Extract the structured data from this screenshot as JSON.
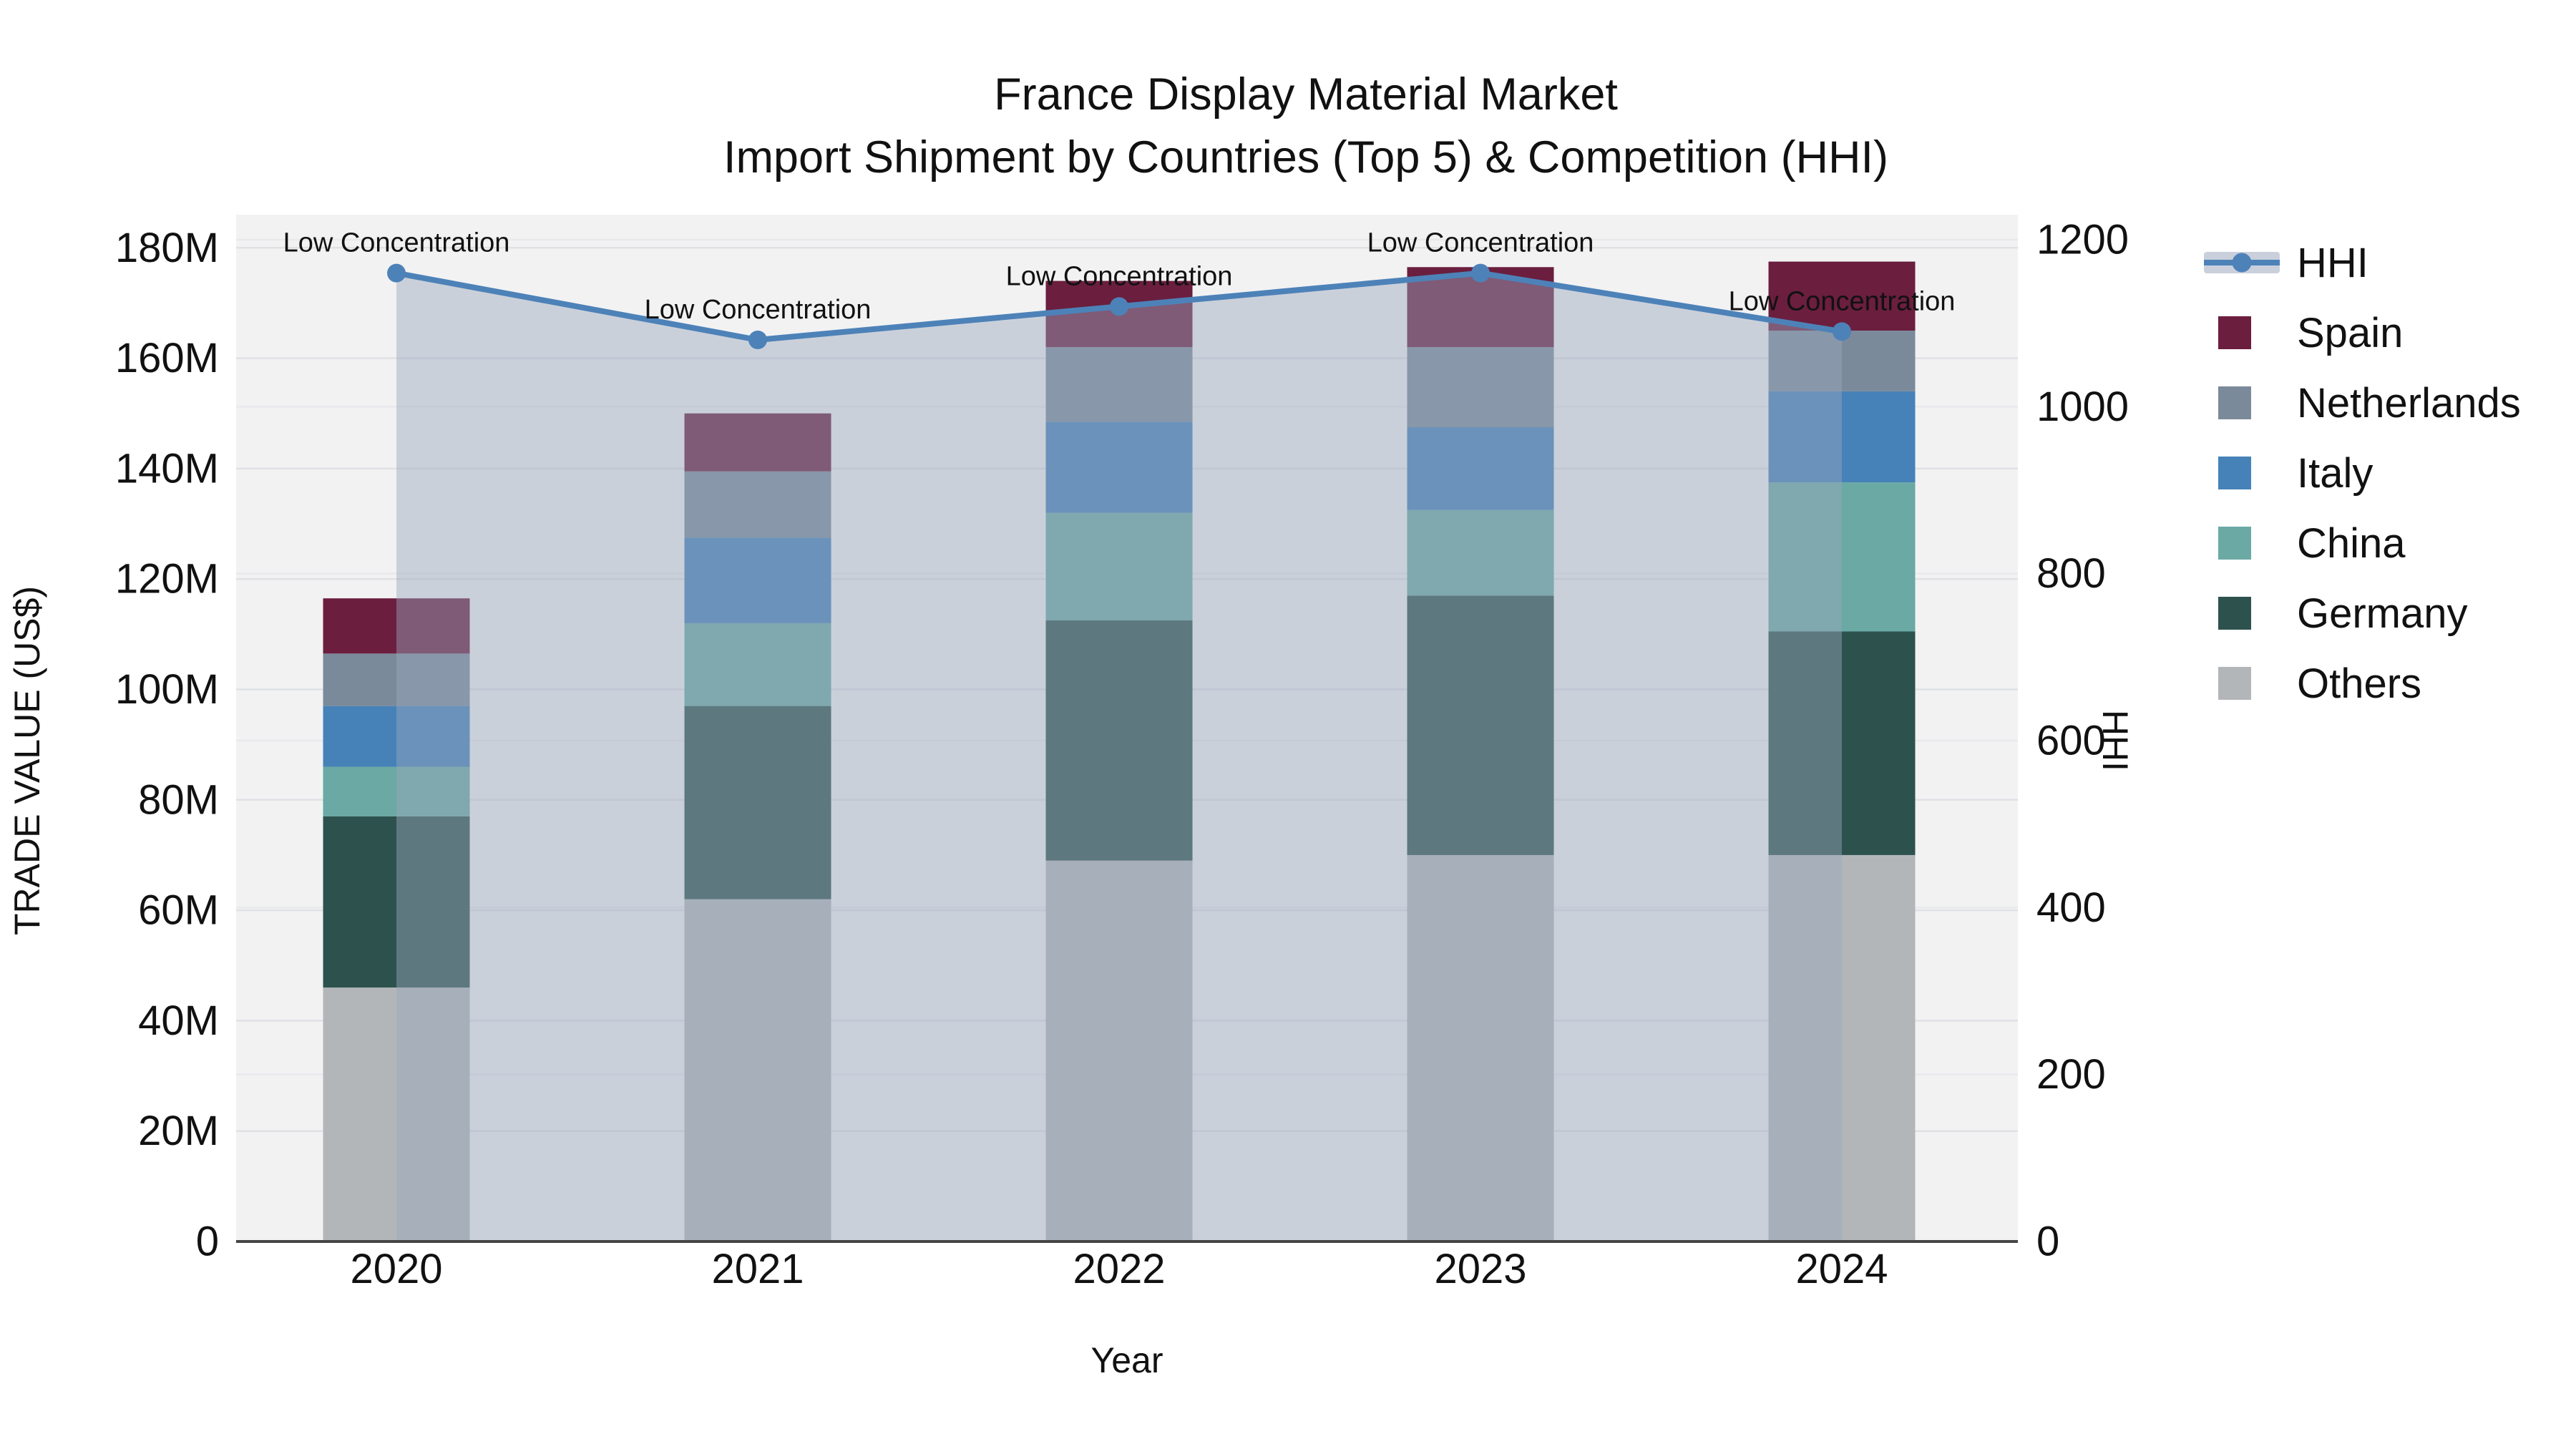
{
  "title": {
    "line1": "France Display Material Market",
    "line2": "Import Shipment by Countries (Top 5) & Competition (HHI)"
  },
  "axes": {
    "x_title": "Year",
    "y_left_title": "TRADE VALUE (US$)",
    "y_right_title": "HHI",
    "x_ticks": [
      "2020",
      "2021",
      "2022",
      "2023",
      "2024"
    ],
    "y_left_ticks": [
      "0",
      "20M",
      "40M",
      "60M",
      "80M",
      "100M",
      "120M",
      "140M",
      "160M",
      "180M"
    ],
    "y_left_tick_values": [
      0,
      20,
      40,
      60,
      80,
      100,
      120,
      140,
      160,
      180
    ],
    "y_right_ticks": [
      0,
      200,
      400,
      600,
      800,
      1000,
      1200
    ]
  },
  "chart_data": {
    "type": "bar+line",
    "title": "France Display Material Market — Import Shipment by Countries (Top 5) & Competition (HHI)",
    "xlabel": "Year",
    "ylabel_left": "TRADE VALUE (US$)",
    "ylabel_right": "HHI",
    "categories": [
      2020,
      2021,
      2022,
      2023,
      2024
    ],
    "value_unit": "million US$",
    "stack_order": "bottom to top",
    "series": [
      {
        "name": "Others",
        "color": "#b3b6b9",
        "values": [
          46,
          62,
          69,
          70,
          70
        ]
      },
      {
        "name": "Germany",
        "color": "#2d524e",
        "values": [
          31,
          35,
          43.5,
          47,
          40.5
        ]
      },
      {
        "name": "China",
        "color": "#6aa9a4",
        "values": [
          9,
          15,
          19.5,
          15.5,
          27
        ]
      },
      {
        "name": "Italy",
        "color": "#4682b8",
        "values": [
          11,
          15.5,
          16.5,
          15,
          16.5
        ]
      },
      {
        "name": "Netherlands",
        "color": "#7b8a9a",
        "values": [
          9.5,
          12,
          13.5,
          14.5,
          11
        ]
      },
      {
        "name": "Spain",
        "color": "#6b1e3e",
        "values": [
          10,
          10.5,
          12,
          14.5,
          12.5
        ]
      }
    ],
    "bar_totals": [
      116.5,
      150,
      174,
      176.5,
      177.5
    ],
    "line": {
      "name": "HHI",
      "color": "#4d82b8",
      "fill": "rgba(153,166,189,0.45)",
      "values": [
        1160,
        1080,
        1120,
        1160,
        1090
      ]
    },
    "annotations": [
      "Low Concentration",
      "Low Concentration",
      "Low Concentration",
      "Low Concentration",
      "Low Concentration"
    ],
    "ylim_left": [
      0,
      186
    ],
    "ylim_right": [
      0,
      1230
    ],
    "grid": true,
    "legend_position": "right"
  },
  "legend": {
    "items": [
      {
        "label": "HHI",
        "type": "line",
        "color": "#4d82b8",
        "fill": "#c9d0dc"
      },
      {
        "label": "Spain",
        "type": "swatch",
        "color": "#6b1e3e"
      },
      {
        "label": "Netherlands",
        "type": "swatch",
        "color": "#7b8a9a"
      },
      {
        "label": "Italy",
        "type": "swatch",
        "color": "#4682b8"
      },
      {
        "label": "China",
        "type": "swatch",
        "color": "#6aa9a4"
      },
      {
        "label": "Germany",
        "type": "swatch",
        "color": "#2d524e"
      },
      {
        "label": "Others",
        "type": "swatch",
        "color": "#b3b6b9"
      }
    ]
  },
  "style": {
    "plot_bg": "#f2f2f3",
    "grid_color_left": "#e0e1e4",
    "grid_color_right": "#e8e9ec",
    "baseline_color": "#454545",
    "text_color": "#111111"
  }
}
